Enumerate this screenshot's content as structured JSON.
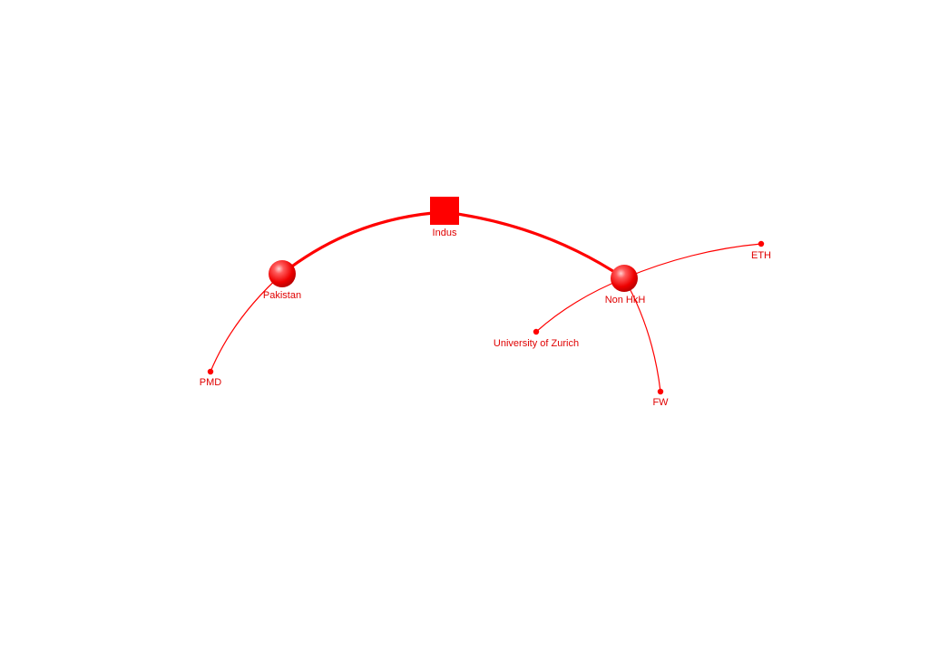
{
  "colors": {
    "edge": "#ff0000",
    "node": "#ff0000",
    "label": "#e00000"
  },
  "nodes": [
    {
      "id": "indus",
      "label": "Indus",
      "shape": "square",
      "role": "hub"
    },
    {
      "id": "pakistan",
      "label": "Pakistan",
      "shape": "sphere",
      "role": "cluster"
    },
    {
      "id": "nonhkh",
      "label": "Non HkH",
      "shape": "sphere",
      "role": "cluster"
    },
    {
      "id": "pmd",
      "label": "PMD",
      "shape": "dot",
      "role": "leaf"
    },
    {
      "id": "uzh",
      "label": "University of Zurich",
      "shape": "dot",
      "role": "leaf"
    },
    {
      "id": "eth",
      "label": "ETH",
      "shape": "dot",
      "role": "leaf"
    },
    {
      "id": "fw",
      "label": "FW",
      "shape": "dot",
      "role": "leaf"
    }
  ],
  "edges": [
    {
      "source": "indus",
      "target": "pakistan",
      "weight": "strong"
    },
    {
      "source": "indus",
      "target": "nonhkh",
      "weight": "strong"
    },
    {
      "source": "pakistan",
      "target": "pmd",
      "weight": "weak"
    },
    {
      "source": "nonhkh",
      "target": "uzh",
      "weight": "weak"
    },
    {
      "source": "nonhkh",
      "target": "eth",
      "weight": "weak"
    },
    {
      "source": "nonhkh",
      "target": "fw",
      "weight": "weak"
    }
  ]
}
